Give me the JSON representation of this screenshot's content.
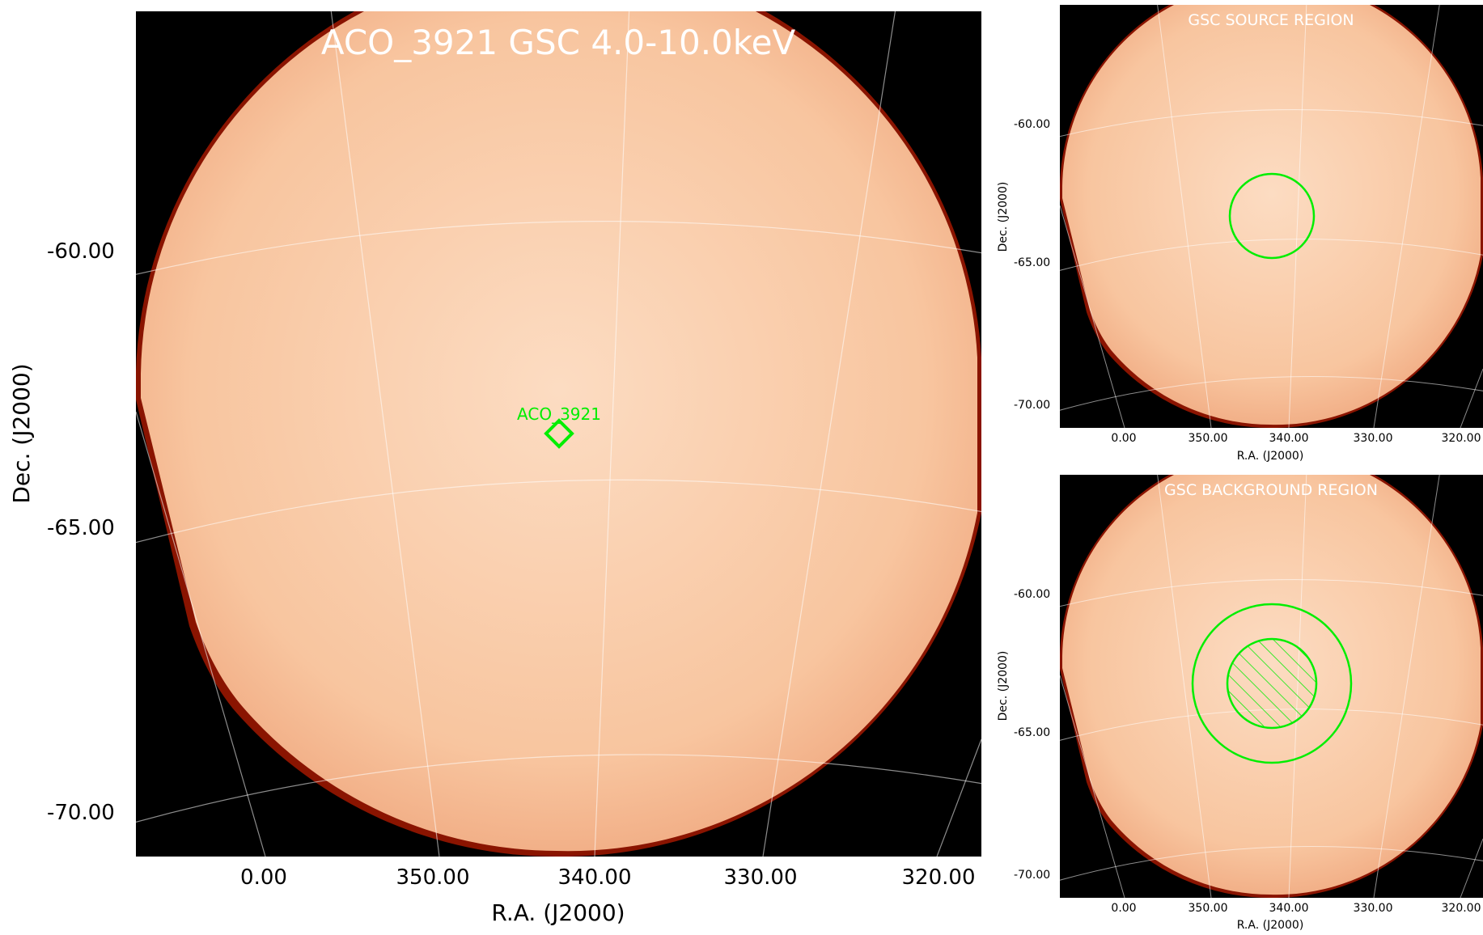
{
  "main": {
    "title": "ACO_3921 GSC 4.0-10.0keV",
    "source_label": "ACO_3921",
    "xlabel": "R.A. (J2000)",
    "ylabel": "Dec. (J2000)",
    "xticks": [
      "0.00",
      "350.00",
      "340.00",
      "330.00",
      "320.00"
    ],
    "yticks": [
      "-60.00",
      "-65.00",
      "-70.00"
    ]
  },
  "source_panel": {
    "title": "GSC SOURCE REGION",
    "xlabel": "R.A. (J2000)",
    "ylabel": "Dec. (J2000)",
    "xticks": [
      "0.00",
      "350.00",
      "340.00",
      "330.00",
      "320.00"
    ],
    "yticks": [
      "-60.00",
      "-65.00",
      "-70.00"
    ]
  },
  "background_panel": {
    "title": "GSC BACKGROUND REGION",
    "xlabel": "R.A. (J2000)",
    "ylabel": "Dec. (J2000)",
    "xticks": [
      "0.00",
      "350.00",
      "340.00",
      "330.00",
      "320.00"
    ],
    "yticks": [
      "-60.00",
      "-65.00",
      "-70.00"
    ]
  },
  "colors": {
    "region": "#00ee00",
    "grid": "#ffffff",
    "image_core": "#fbd5b6",
    "image_edge": "#7a1200"
  }
}
